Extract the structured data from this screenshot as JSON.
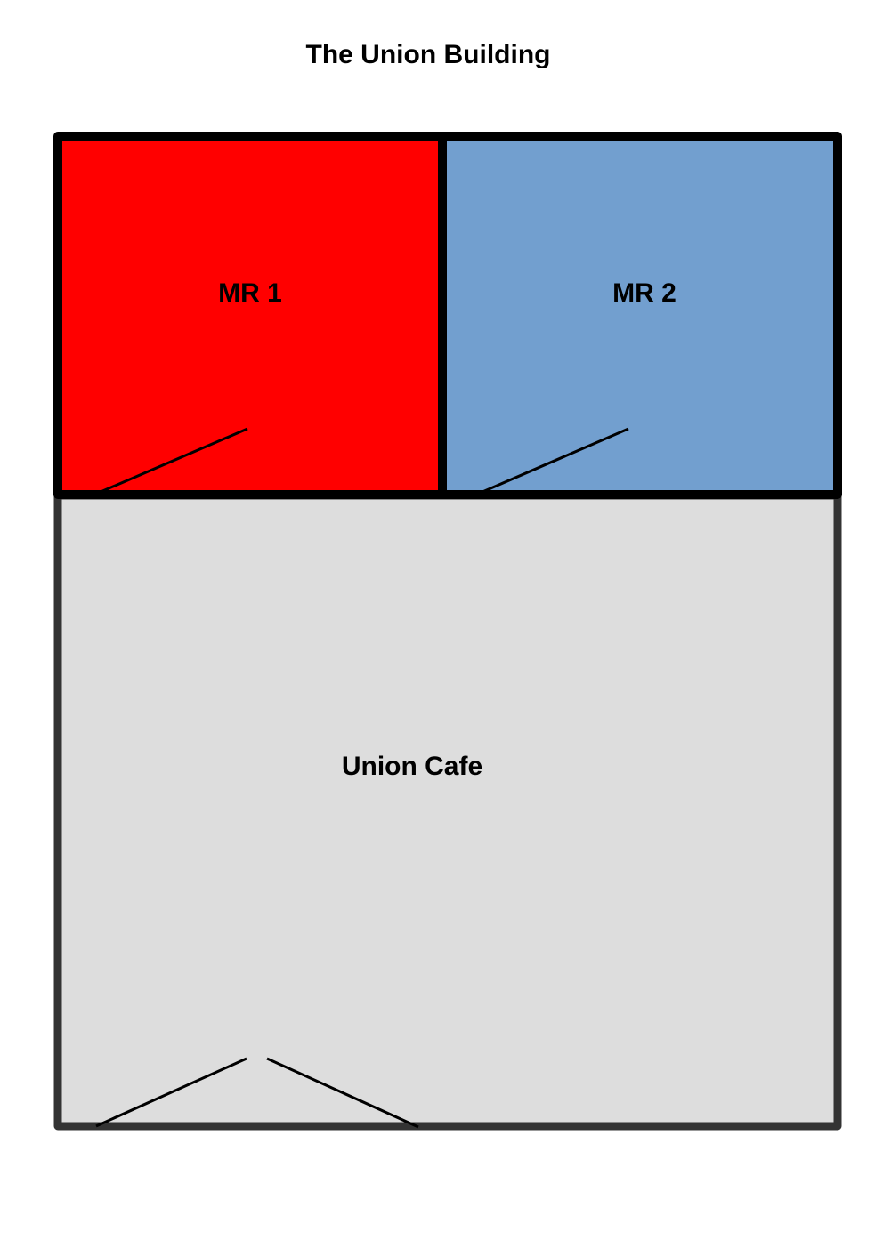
{
  "title": "The Union Building",
  "rooms": [
    {
      "id": "mr1",
      "label": "MR 1",
      "color": "#ff0000"
    },
    {
      "id": "mr2",
      "label": "MR 2",
      "color": "#729fcf"
    },
    {
      "id": "cafe",
      "label": "Union Cafe",
      "color": "#dddddd"
    }
  ],
  "colors": {
    "outer_wall": "#333333",
    "room_wall": "#000000",
    "door": "#000000"
  }
}
